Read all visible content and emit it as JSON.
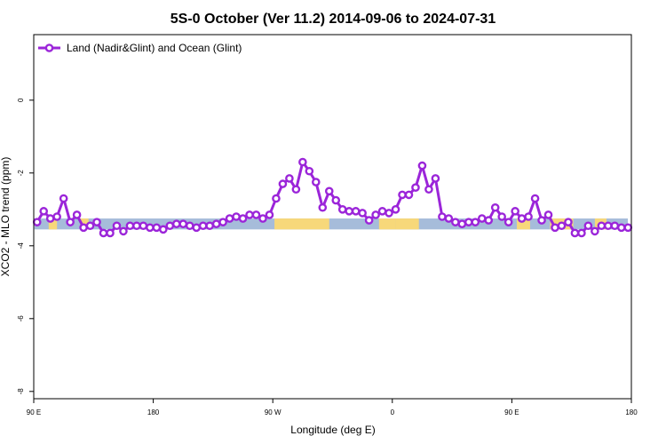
{
  "chart_data": {
    "type": "line",
    "title": "5S-0 October (Ver 11.2)   2014-09-06 to 2024-07-31",
    "xlabel": "Longitude (deg E)",
    "ylabel": "XCO2 - MLO trend (ppm)",
    "xlim": [
      90,
      450
    ],
    "ylim": [
      -8.2,
      1.8
    ],
    "x_ticks": [
      {
        "value": 90,
        "label": "90 E"
      },
      {
        "value": 162,
        "label": "180"
      },
      {
        "value": 234,
        "label": "90 W"
      },
      {
        "value": 306,
        "label": "0"
      },
      {
        "value": 378,
        "label": "90 E"
      },
      {
        "value": 450,
        "label": "180"
      }
    ],
    "y_ticks": [
      {
        "value": 0,
        "label": "0"
      },
      {
        "value": -2,
        "label": "-2"
      },
      {
        "value": -4,
        "label": "-4"
      },
      {
        "value": -6,
        "label": "-6"
      },
      {
        "value": -8,
        "label": "-8"
      }
    ],
    "grid": false,
    "legend_position": "top-left",
    "surface_band": {
      "y_top": -3.25,
      "y_bottom": -3.55,
      "ocean_color": "#a6bcda",
      "land_color": "#f7d87a",
      "land_segments": [
        [
          99,
          104
        ],
        [
          118,
          123
        ],
        [
          235,
          268
        ],
        [
          298,
          308
        ],
        [
          308,
          322
        ],
        [
          381,
          389
        ],
        [
          401,
          415
        ],
        [
          428,
          435
        ]
      ]
    },
    "series": [
      {
        "name": "Land (Nadir&Glint) and Ocean (Glint)",
        "color": "#9b25d9",
        "x": [
          92,
          96,
          100,
          104,
          108,
          112,
          116,
          120,
          124,
          128,
          132,
          136,
          140,
          144,
          148,
          152,
          156,
          160,
          164,
          168,
          172,
          176,
          180,
          184,
          188,
          192,
          196,
          200,
          204,
          208,
          212,
          216,
          220,
          224,
          228,
          232,
          236,
          240,
          244,
          248,
          252,
          256,
          260,
          264,
          268,
          272,
          276,
          280,
          284,
          288,
          292,
          296,
          300,
          304,
          308,
          312,
          316,
          320,
          324,
          328,
          332,
          336,
          340,
          344,
          348,
          352,
          356,
          360,
          364,
          368,
          372,
          376,
          380,
          384,
          388,
          392,
          396,
          400,
          404,
          408,
          412,
          416,
          420,
          424,
          428,
          432,
          436,
          440,
          444,
          448
        ],
        "y": [
          -3.35,
          -3.05,
          -3.25,
          -3.2,
          -2.7,
          -3.35,
          -3.15,
          -3.5,
          -3.45,
          -3.35,
          -3.65,
          -3.65,
          -3.45,
          -3.6,
          -3.45,
          -3.45,
          -3.45,
          -3.5,
          -3.5,
          -3.55,
          -3.45,
          -3.4,
          -3.4,
          -3.45,
          -3.5,
          -3.45,
          -3.45,
          -3.4,
          -3.35,
          -3.25,
          -3.2,
          -3.25,
          -3.15,
          -3.15,
          -3.25,
          -3.15,
          -2.7,
          -2.3,
          -2.15,
          -2.45,
          -1.7,
          -1.95,
          -2.25,
          -2.95,
          -2.5,
          -2.75,
          -3.0,
          -3.05,
          -3.05,
          -3.1,
          -3.3,
          -3.15,
          -3.05,
          -3.1,
          -3.0,
          -2.6,
          -2.6,
          -2.4,
          -1.8,
          -2.45,
          -2.15,
          -3.2,
          -3.25,
          -3.35,
          -3.4,
          -3.35,
          -3.35,
          -3.25,
          -3.3,
          -2.95,
          -3.2,
          -3.35,
          -3.05,
          -3.25,
          -3.2,
          -2.7,
          -3.3,
          -3.15,
          -3.5,
          -3.45,
          -3.35,
          -3.65,
          -3.65,
          -3.45,
          -3.6,
          -3.45,
          -3.45,
          -3.45,
          -3.5,
          -3.5
        ]
      }
    ]
  }
}
